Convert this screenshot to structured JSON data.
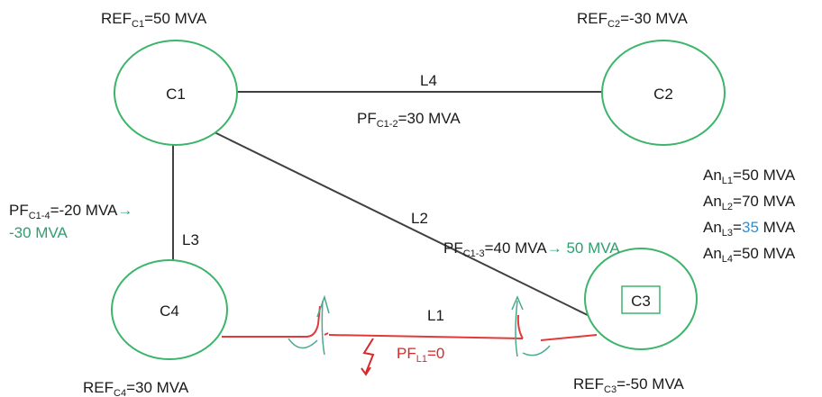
{
  "colors": {
    "node_stroke": "#3cb56a",
    "line_black": "#404040",
    "line_red": "#e23a3a",
    "accent_green": "#2e9e6e",
    "accent_red": "#d42a2a",
    "accent_blue": "#2f8fd0"
  },
  "nodes": {
    "c1": "C1",
    "c2": "C2",
    "c3": "C3",
    "c4": "C4"
  },
  "lines": {
    "l1": "L1",
    "l2": "L2",
    "l3": "L3",
    "l4": "L4"
  },
  "ref": {
    "c1": {
      "prefix": "REF",
      "sub": "C1",
      "suffix": "=50 MVA"
    },
    "c2": {
      "prefix": "REF",
      "sub": "C2",
      "suffix": "=-30 MVA"
    },
    "c3": {
      "prefix": "REF",
      "sub": "C3",
      "suffix": "=-50 MVA"
    },
    "c4": {
      "prefix": "REF",
      "sub": "C4",
      "suffix": "=30 MVA"
    }
  },
  "flows": {
    "pf_c1_2": {
      "prefix": "PF",
      "sub": "C1-2",
      "suffix": "=30 MVA"
    },
    "pf_c1_3": {
      "prefix": "PF",
      "sub": "C1-3",
      "suffix": "=40 MVA",
      "arrow": "→",
      "new_value": " 50 MVA"
    },
    "pf_c1_4": {
      "prefix": "PF",
      "sub": "C1-4",
      "suffix": "=-20 MVA",
      "arrow": "→",
      "new_value": "-30 MVA"
    },
    "pf_l1": {
      "prefix": "PF",
      "sub": "L1",
      "suffix": "=0"
    }
  },
  "ratings": [
    {
      "prefix": "An",
      "sub": "L1",
      "value": "=50",
      "unit": " MVA"
    },
    {
      "prefix": "An",
      "sub": "L2",
      "value": "=70",
      "unit": " MVA"
    },
    {
      "prefix": "An",
      "sub": "L3",
      "eq": "=",
      "highlight": "35",
      "unit": " MVA"
    },
    {
      "prefix": "An",
      "sub": "L4",
      "value": "=50",
      "unit": " MVA"
    }
  ]
}
